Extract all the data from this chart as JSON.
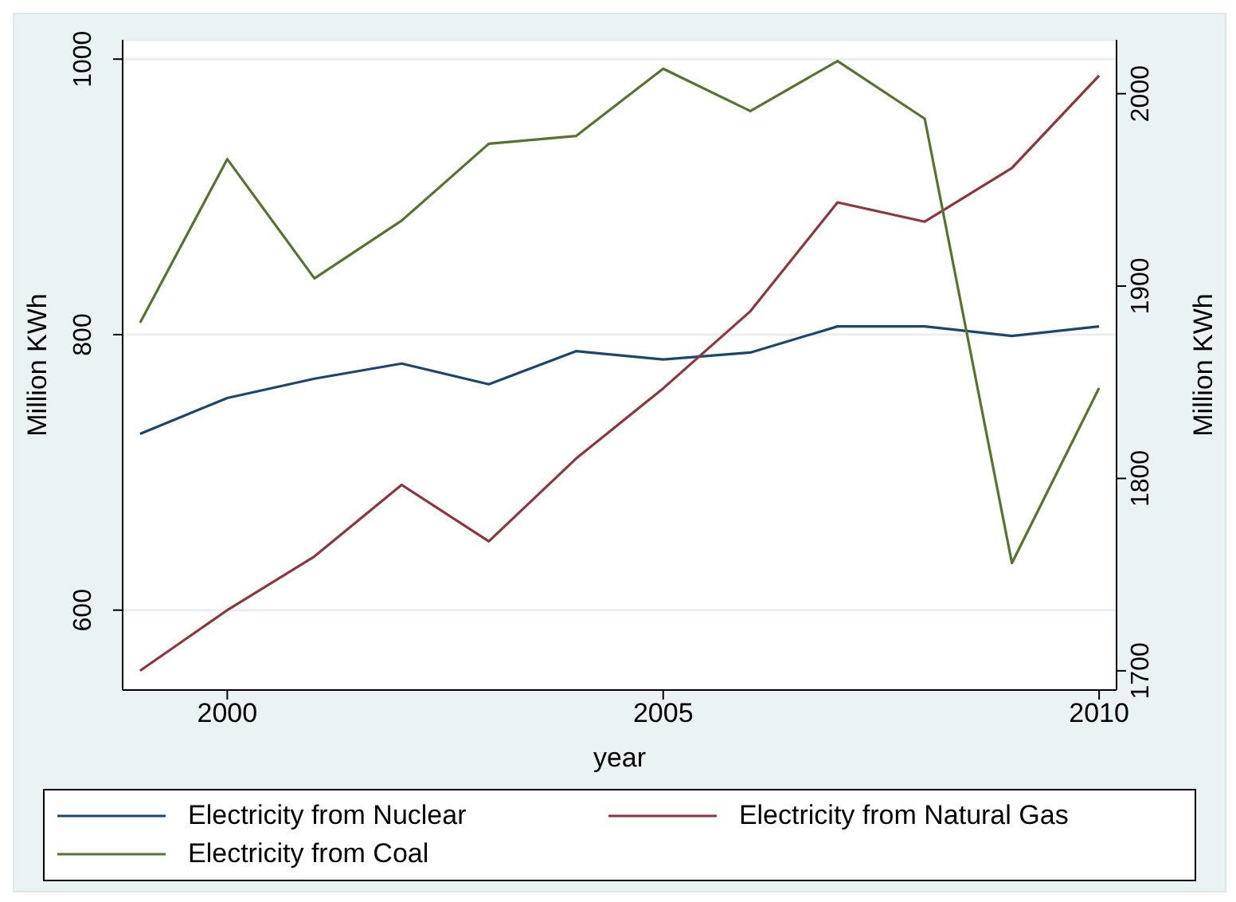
{
  "chart_data": {
    "type": "line",
    "xlabel": "year",
    "ylabel": "Million KWh",
    "y2label": "Million KWh",
    "x": [
      1999,
      2000,
      2001,
      2002,
      2003,
      2004,
      2005,
      2006,
      2007,
      2008,
      2009,
      2010
    ],
    "xlim": [
      1998.8,
      2010.2
    ],
    "xticks": [
      2000,
      2005,
      2010
    ],
    "ylim": [
      542,
      1014
    ],
    "yticks": [
      600,
      800,
      1000
    ],
    "y2lim": [
      1690,
      2028
    ],
    "y2ticks": [
      1700,
      1800,
      1900,
      2000
    ],
    "grid": "y",
    "legend": "bottom",
    "marker": "none",
    "line_style": "solid",
    "series": [
      {
        "name": "Electricity from Nuclear",
        "color": "#1a476f",
        "values": [
          728,
          754,
          768,
          779,
          764,
          788,
          782,
          787,
          806,
          806,
          799,
          806
        ]
      },
      {
        "name": "Electricity from Natural Gas",
        "color": "#90353b",
        "values": [
          556,
          600,
          639,
          691,
          650,
          710,
          761,
          817,
          896,
          882,
          921,
          988
        ]
      },
      {
        "name": "Electricity from Coal",
        "color": "#55752f",
        "axis": "y2",
        "values": [
          1881,
          1966,
          1904,
          1934,
          1974,
          1978,
          2013,
          1991,
          2017,
          1987,
          1756,
          1847
        ]
      }
    ]
  }
}
